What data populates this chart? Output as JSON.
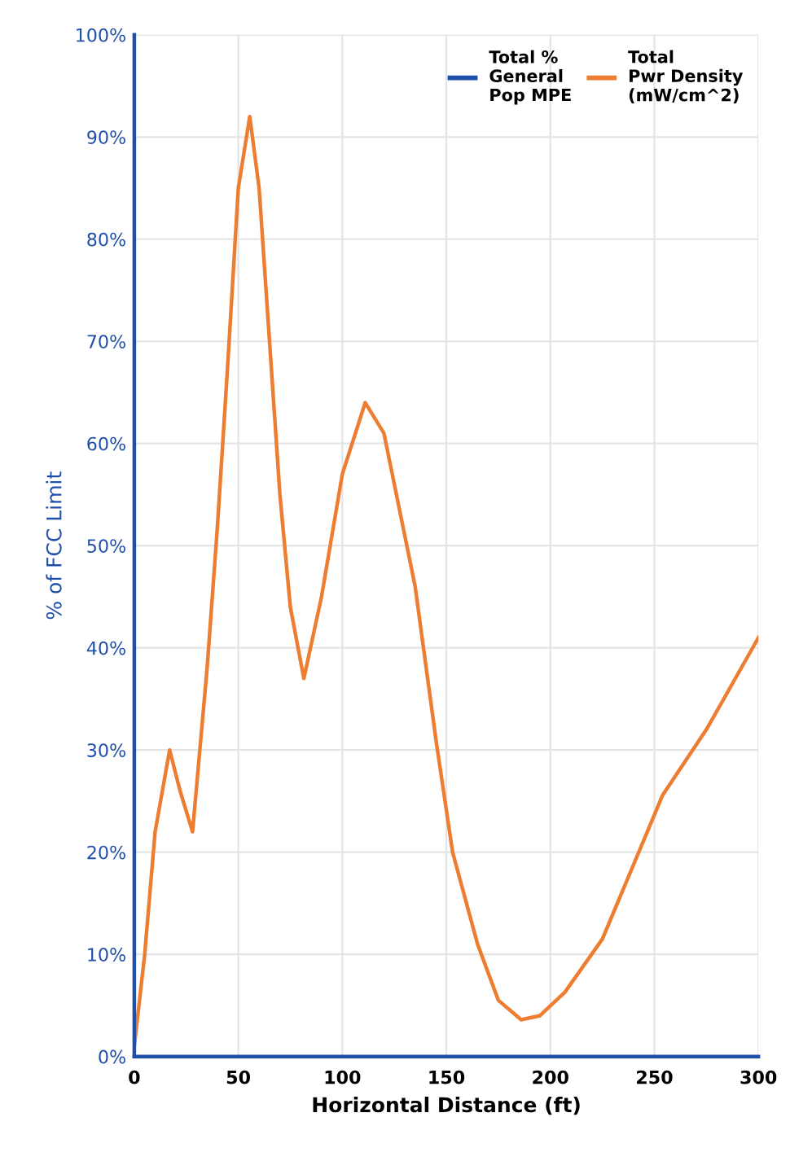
{
  "chart_data": {
    "type": "line",
    "xlabel": "Horizontal Distance (ft)",
    "ylabel": "% of FCC Limit",
    "x": [
      0,
      5,
      10,
      17,
      22,
      28,
      35,
      40,
      45,
      50,
      55.5,
      60,
      65,
      70,
      75,
      81.5,
      90,
      100,
      111,
      120,
      128,
      135,
      145,
      153,
      165,
      175,
      186,
      195,
      207,
      225,
      254,
      275,
      300
    ],
    "series": [
      {
        "name": "Total %\nGeneral\nPop MPE",
        "color": "#1f4fa8",
        "values": [
          null,
          null,
          null,
          null,
          null,
          null,
          null,
          null,
          null,
          null,
          null,
          null,
          null,
          null,
          null,
          null,
          null,
          null,
          null,
          null,
          null,
          null,
          null,
          null,
          null,
          null,
          null,
          null,
          null,
          null,
          null,
          null,
          null
        ]
      },
      {
        "name": "Total\nPwr Density\n(mW/cm^2)",
        "color": "#ed7d31",
        "values": [
          1,
          10,
          22,
          30,
          26,
          22,
          38,
          52,
          68,
          85,
          92,
          85,
          70,
          55,
          44,
          37,
          45,
          57,
          64,
          61,
          53,
          46,
          31,
          20,
          11,
          5.5,
          3.6,
          4,
          6.3,
          11.5,
          25.6,
          32,
          41
        ]
      }
    ],
    "xlim": [
      0,
      300
    ],
    "xticks": [
      0,
      50,
      100,
      150,
      200,
      250,
      300
    ],
    "ylim": [
      0,
      100
    ],
    "yticks": [
      {
        "value": 0,
        "label": "0%"
      },
      {
        "value": 10,
        "label": "10%"
      },
      {
        "value": 20,
        "label": "20%"
      },
      {
        "value": 30,
        "label": "30%"
      },
      {
        "value": 40,
        "label": "40%"
      },
      {
        "value": 50,
        "label": "50%"
      },
      {
        "value": 60,
        "label": "60%"
      },
      {
        "value": 70,
        "label": "70%"
      },
      {
        "value": 80,
        "label": "80%"
      },
      {
        "value": 90,
        "label": "90%"
      },
      {
        "value": 100,
        "label": "100%"
      }
    ],
    "grid": true,
    "legend": "top right",
    "marker": "none",
    "line_style": "solid"
  }
}
